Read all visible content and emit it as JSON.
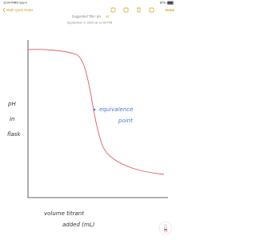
{
  "status_bar": {
    "time": "12:04 PM",
    "date": "Fri Sep 4",
    "battery": "87%"
  },
  "nav": {
    "back": "Math Quick Notes",
    "done": "Done"
  },
  "note": {
    "suggested_title": "Suggested Title: pH",
    "suggested_word": "vs",
    "date": "September 4, 2020 at 12:04 PM"
  },
  "sketch": {
    "y_label": [
      "pH",
      "in",
      "flask"
    ],
    "annotation": [
      "equivalence",
      "point"
    ],
    "x_label": [
      "volume titrant",
      "added (mL)"
    ]
  }
}
